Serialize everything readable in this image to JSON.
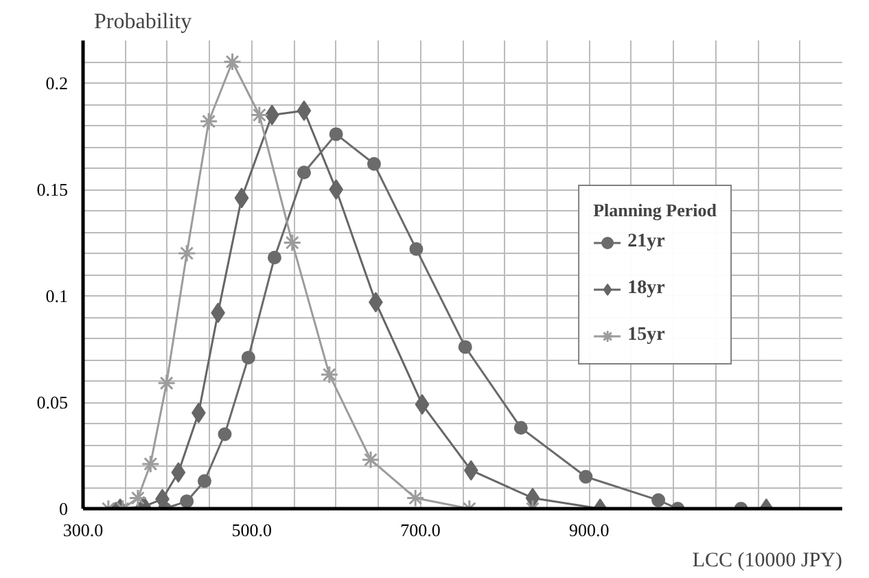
{
  "chart_data": {
    "type": "line",
    "xlabel": "LCC (10000 JPY)",
    "ylabel": "Probability",
    "legend_title": "Planning Period",
    "series": [
      {
        "name": "21yr",
        "color": "#6b6b6b",
        "marker": "circle",
        "x": [
          341,
          370,
          397,
          423,
          444,
          468,
          496,
          527,
          562,
          600,
          645,
          695,
          753,
          819,
          896,
          982,
          1005,
          1080
        ],
        "values": [
          0,
          0,
          0,
          0.0035,
          0.013,
          0.035,
          0.071,
          0.118,
          0.158,
          0.176,
          0.162,
          0.122,
          0.076,
          0.038,
          0.015,
          0.004,
          0,
          0
        ]
      },
      {
        "name": "18yr",
        "color": "#666666",
        "marker": "diamond",
        "x": [
          344,
          372,
          394,
          413,
          437,
          460,
          488,
          524,
          562,
          600,
          647,
          702,
          760,
          833,
          913,
          1110
        ],
        "values": [
          0,
          0.001,
          0.0045,
          0.017,
          0.045,
          0.092,
          0.146,
          0.185,
          0.187,
          0.15,
          0.097,
          0.049,
          0.018,
          0.005,
          0,
          0
        ]
      },
      {
        "name": "15yr",
        "color": "#9c9c9c",
        "marker": "cross",
        "x": [
          330,
          347,
          365,
          380,
          399,
          423,
          449,
          477,
          509,
          548,
          592,
          641,
          694,
          758,
          833
        ],
        "values": [
          0,
          0,
          0.005,
          0.021,
          0.059,
          0.12,
          0.182,
          0.21,
          0.185,
          0.125,
          0.063,
          0.023,
          0.005,
          0,
          0
        ]
      }
    ],
    "xlim": [
      300,
      1200
    ],
    "ylim": [
      0,
      0.22
    ],
    "xticks": [
      {
        "value": 300,
        "label": "300.0"
      },
      {
        "value": 350,
        "label": null
      },
      {
        "value": 400,
        "label": null
      },
      {
        "value": 450,
        "label": null
      },
      {
        "value": 500,
        "label": "500.0"
      },
      {
        "value": 550,
        "label": null
      },
      {
        "value": 600,
        "label": null
      },
      {
        "value": 650,
        "label": null
      },
      {
        "value": 700,
        "label": "700.0"
      },
      {
        "value": 750,
        "label": null
      },
      {
        "value": 800,
        "label": null
      },
      {
        "value": 850,
        "label": null
      },
      {
        "value": 900,
        "label": "900.0"
      },
      {
        "value": 950,
        "label": null
      },
      {
        "value": 1000,
        "label": null
      },
      {
        "value": 1050,
        "label": null
      },
      {
        "value": 1100,
        "label": null
      },
      {
        "value": 1150,
        "label": null
      }
    ],
    "yticks": [
      0,
      {
        "value": 0.01,
        "label": null
      },
      {
        "value": 0.02,
        "label": null
      },
      {
        "value": 0.03,
        "label": null
      },
      {
        "value": 0.04,
        "label": null
      },
      0.05,
      {
        "value": 0.06,
        "label": null
      },
      {
        "value": 0.07,
        "label": null
      },
      {
        "value": 0.08,
        "label": null
      },
      {
        "value": 0.09,
        "label": null
      },
      0.1,
      {
        "value": 0.11,
        "label": null
      },
      {
        "value": 0.12,
        "label": null
      },
      {
        "value": 0.13,
        "label": null
      },
      {
        "value": 0.14,
        "label": null
      },
      0.15,
      {
        "value": 0.16,
        "label": null
      },
      {
        "value": 0.17,
        "label": null
      },
      {
        "value": 0.18,
        "label": null
      },
      {
        "value": 0.19,
        "label": null
      },
      0.2,
      {
        "value": 0.21,
        "label": null
      }
    ],
    "grid": true,
    "legend": "right"
  }
}
